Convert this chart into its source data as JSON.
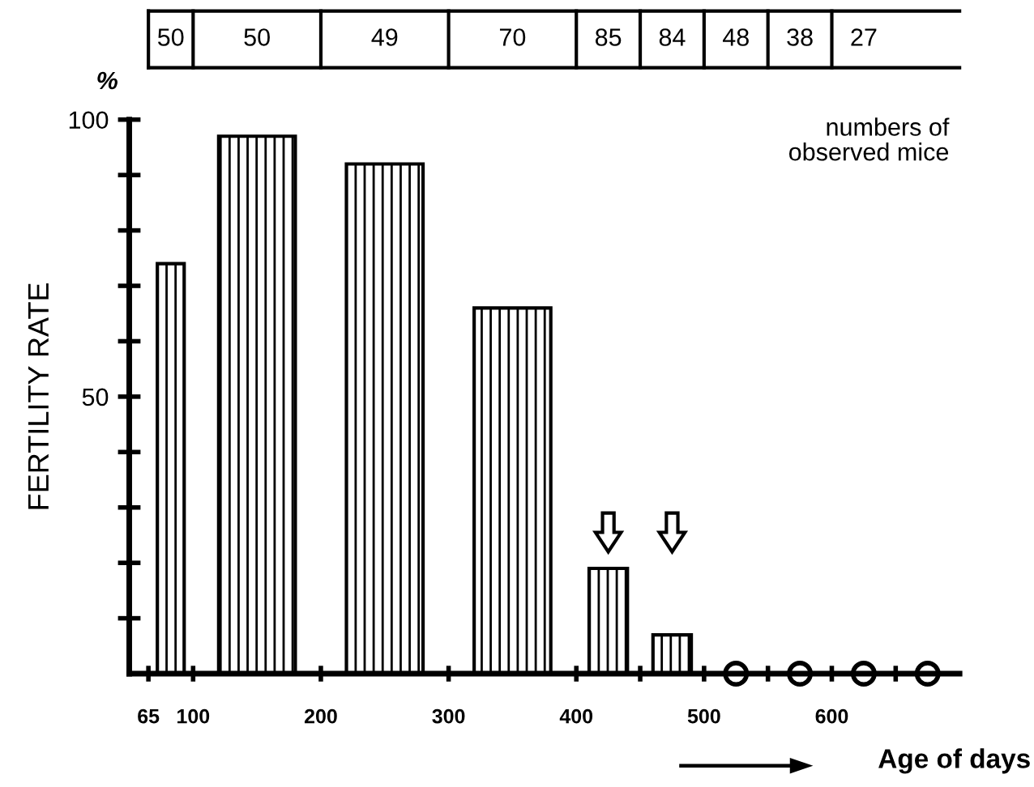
{
  "chart_data": {
    "type": "bar",
    "ylabel": "FERTILITY RATE",
    "xlabel": "Age of days",
    "annotations": [
      "%",
      "numbers of\nobserved mice",
      "50",
      "50",
      "49",
      "70",
      "85",
      "84",
      "48",
      "38",
      "27"
    ],
    "series": [
      {
        "color": "#000000",
        "x": [
          82.5,
          150,
          250,
          350,
          425,
          475
        ],
        "values": [
          74,
          97,
          92,
          66,
          19,
          7
        ]
      },
      {
        "type": "scatter",
        "color": "#000000",
        "x": [
          525,
          575,
          625,
          675
        ],
        "values": [
          0,
          0,
          0,
          0
        ]
      }
    ],
    "marker": "circle",
    "xlim": [
      50,
      700
    ],
    "xticks": [
      65,
      100,
      200,
      300,
      400,
      {
        "value": 450,
        "label": null
      },
      500,
      {
        "value": 550,
        "label": null
      },
      600,
      {
        "value": 650,
        "label": null
      }
    ],
    "ylim": [
      0,
      100
    ],
    "yticks": [
      {
        "value": 10,
        "label": null
      },
      {
        "value": 20,
        "label": null
      },
      {
        "value": 30,
        "label": null
      },
      {
        "value": 40,
        "label": null
      },
      50,
      {
        "value": 60,
        "label": null
      },
      {
        "value": 70,
        "label": null
      },
      {
        "value": 80,
        "label": null
      },
      {
        "value": 90,
        "label": null
      },
      100
    ]
  }
}
